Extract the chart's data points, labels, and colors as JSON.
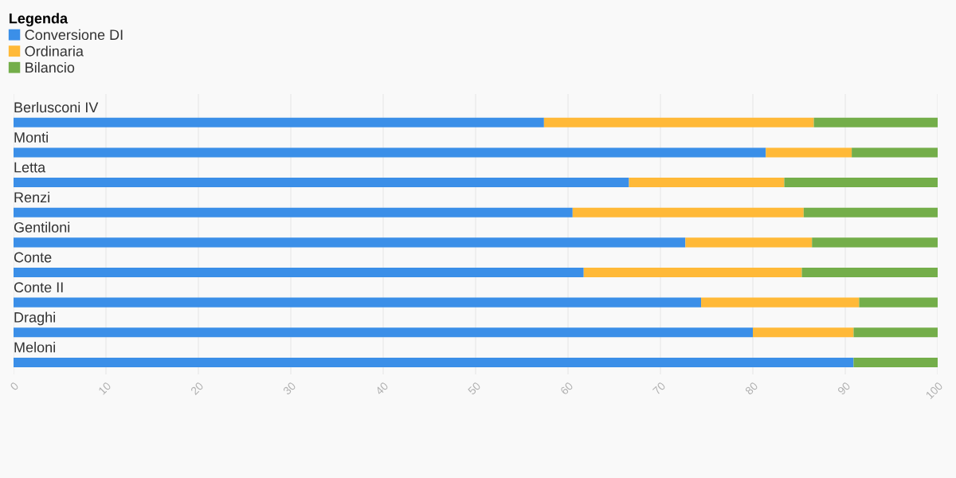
{
  "chart_data": {
    "type": "bar",
    "orientation": "horizontal",
    "stacked": true,
    "legend_title": "Legenda",
    "legend": "top left",
    "grid": "x",
    "categories": [
      "Berlusconi IV",
      "Monti",
      "Letta",
      "Renzi",
      "Gentiloni",
      "Conte",
      "Conte II",
      "Draghi",
      "Meloni"
    ],
    "series": [
      {
        "name": "Conversione DI",
        "color": "#3b8fe8",
        "values": [
          57.4,
          81.4,
          66.6,
          60.5,
          72.7,
          61.7,
          74.4,
          80.0,
          90.9
        ]
      },
      {
        "name": "Ordinaria",
        "color": "#ffb938",
        "values": [
          29.2,
          9.3,
          16.8,
          25.0,
          13.7,
          23.6,
          17.1,
          10.9,
          0
        ]
      },
      {
        "name": "Bilancio",
        "color": "#74ae4a",
        "values": [
          13.4,
          9.3,
          16.6,
          14.5,
          13.6,
          14.7,
          8.5,
          9.1,
          9.1
        ]
      }
    ],
    "xlim": [
      0,
      100
    ],
    "xticks": [
      0,
      10,
      20,
      30,
      40,
      50,
      60,
      70,
      80,
      90,
      100
    ]
  }
}
